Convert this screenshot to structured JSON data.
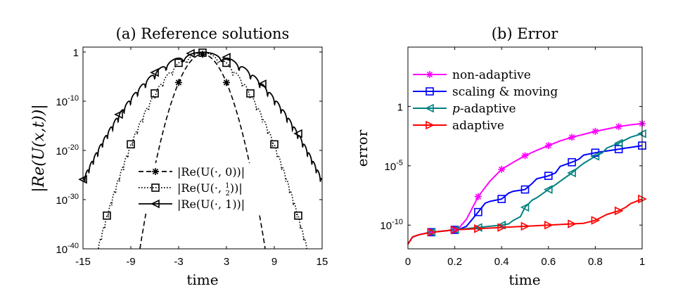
{
  "chart_data": [
    {
      "type": "line",
      "title": "(a) Reference solutions",
      "xlabel": "time",
      "ylabel": "|Re(U(x,t))|",
      "xlim": [
        -15,
        15
      ],
      "ylog10lim": [
        -40,
        1
      ],
      "xticks": [
        "-15",
        "-9",
        "-3",
        "3",
        "9",
        "15"
      ],
      "yticks": [
        {
          "exp": -40,
          "base": "10",
          "sup": "-40"
        },
        {
          "exp": -30,
          "base": "10",
          "sup": "-30"
        },
        {
          "exp": -20,
          "base": "10",
          "sup": "-20"
        },
        {
          "exp": -10,
          "base": "10",
          "sup": "-10"
        },
        {
          "exp": 0,
          "label": "1"
        }
      ],
      "legend_position": "lower-center",
      "series": [
        {
          "name": "|Re(U(·,0))|",
          "legend_math": [
            "|Re(U(·, 0))|"
          ],
          "marker": "star",
          "dash": "dash",
          "gaussian_a": 0.64,
          "markers_x": [
            -9,
            -6,
            -3,
            0,
            3,
            6,
            9
          ]
        },
        {
          "name": "|Re(U(·,1/2))|",
          "legend_math": [
            "|Re(U(·, ",
            "1",
            "2",
            "))|"
          ],
          "marker": "square",
          "dash": "dot",
          "gaussian_a": 0.23,
          "markers_x": [
            -15,
            -12,
            -9,
            -6,
            -3,
            0,
            3,
            6,
            9,
            12,
            15
          ]
        },
        {
          "name": "|Re(U(·,1))|",
          "legend_math": [
            "|Re(U(·, 1))|"
          ],
          "marker": "triangle-left",
          "dash": "solid",
          "gaussian_a": 0.115,
          "markers_x": [
            -15,
            -10.5,
            -6,
            -1.5,
            3,
            7.5,
            12
          ]
        }
      ]
    },
    {
      "type": "line",
      "title": "(b) Error",
      "xlabel": "time",
      "ylabel": "error",
      "xlim": [
        0,
        1
      ],
      "ylog10lim": [
        -12,
        5
      ],
      "xticks": [
        "0",
        "0.2",
        "0.4",
        "0.6",
        "0.8",
        "1"
      ],
      "yticks": [
        {
          "exp": -10,
          "base": "10",
          "sup": "-10"
        },
        {
          "exp": -5,
          "base": "10",
          "sup": "-5"
        },
        {
          "exp": 0,
          "label": "1"
        }
      ],
      "legend_position": "top-left",
      "series": [
        {
          "name": "non-adaptive",
          "color": "#ff00ff",
          "marker": "star",
          "x": [
            0,
            0.02,
            0.05,
            0.1,
            0.15,
            0.2,
            0.22,
            0.25,
            0.3,
            0.35,
            0.4,
            0.45,
            0.5,
            0.55,
            0.6,
            0.65,
            0.7,
            0.75,
            0.8,
            0.85,
            0.9,
            0.95,
            1.0
          ],
          "log10_y": [
            -11.6,
            -11.0,
            -10.8,
            -10.6,
            -10.5,
            -10.4,
            -10.2,
            -9.5,
            -7.6,
            -6.3,
            -5.3,
            -4.7,
            -4.15,
            -3.7,
            -3.3,
            -2.9,
            -2.6,
            -2.35,
            -2.1,
            -1.9,
            -1.7,
            -1.55,
            -1.45
          ],
          "markers_x": [
            0.1,
            0.2,
            0.3,
            0.4,
            0.5,
            0.6,
            0.7,
            0.8,
            0.9,
            1.0
          ]
        },
        {
          "name": "scaling & moving",
          "color": "#0000ff",
          "marker": "square",
          "x": [
            0,
            0.02,
            0.05,
            0.1,
            0.15,
            0.2,
            0.22,
            0.25,
            0.3,
            0.33,
            0.35,
            0.4,
            0.43,
            0.45,
            0.5,
            0.53,
            0.55,
            0.6,
            0.63,
            0.65,
            0.7,
            0.73,
            0.75,
            0.8,
            0.85,
            0.9,
            0.95,
            1.0
          ],
          "log10_y": [
            -11.6,
            -11.0,
            -10.8,
            -10.6,
            -10.5,
            -10.4,
            -10.35,
            -10.1,
            -8.9,
            -8.15,
            -8.0,
            -7.8,
            -7.3,
            -7.15,
            -7.0,
            -6.5,
            -6.1,
            -5.85,
            -5.6,
            -5.05,
            -4.7,
            -4.45,
            -4.1,
            -3.9,
            -3.75,
            -3.6,
            -3.45,
            -3.3
          ],
          "markers_x": [
            0.1,
            0.2,
            0.3,
            0.4,
            0.5,
            0.6,
            0.7,
            0.8,
            0.9,
            1.0
          ]
        },
        {
          "name": "p-adaptive",
          "name_italic": "p",
          "name_rest": "-adaptive",
          "color": "#008080",
          "marker": "triangle-left",
          "x": [
            0,
            0.02,
            0.05,
            0.1,
            0.15,
            0.2,
            0.25,
            0.3,
            0.35,
            0.4,
            0.43,
            0.45,
            0.48,
            0.5,
            0.53,
            0.55,
            0.6,
            0.63,
            0.65,
            0.7,
            0.73,
            0.75,
            0.8,
            0.83,
            0.85,
            0.9,
            0.93,
            0.95,
            1.0
          ],
          "log10_y": [
            -11.6,
            -11.0,
            -10.8,
            -10.6,
            -10.5,
            -10.4,
            -10.3,
            -10.2,
            -10.1,
            -10.0,
            -9.9,
            -9.6,
            -9.3,
            -8.5,
            -7.9,
            -7.7,
            -7.0,
            -6.6,
            -6.3,
            -5.6,
            -5.1,
            -4.8,
            -4.2,
            -3.9,
            -3.5,
            -3.1,
            -2.8,
            -2.6,
            -2.3
          ],
          "markers_x": [
            0.1,
            0.2,
            0.3,
            0.4,
            0.5,
            0.6,
            0.7,
            0.8,
            0.9,
            1.0
          ]
        },
        {
          "name": "adaptive",
          "color": "#ff0000",
          "marker": "triangle-right",
          "x": [
            0,
            0.02,
            0.05,
            0.1,
            0.15,
            0.2,
            0.25,
            0.3,
            0.35,
            0.4,
            0.45,
            0.5,
            0.55,
            0.6,
            0.65,
            0.7,
            0.75,
            0.8,
            0.83,
            0.85,
            0.9,
            0.93,
            0.95,
            1.0
          ],
          "log10_y": [
            -11.6,
            -11.0,
            -10.8,
            -10.6,
            -10.5,
            -10.4,
            -10.35,
            -10.3,
            -10.25,
            -10.2,
            -10.15,
            -10.1,
            -10.05,
            -10.0,
            -9.95,
            -9.9,
            -9.85,
            -9.6,
            -9.3,
            -9.1,
            -8.8,
            -8.5,
            -8.2,
            -7.8
          ],
          "markers_x": [
            0.1,
            0.2,
            0.3,
            0.4,
            0.5,
            0.6,
            0.7,
            0.8,
            0.9,
            1.0
          ]
        }
      ]
    }
  ]
}
